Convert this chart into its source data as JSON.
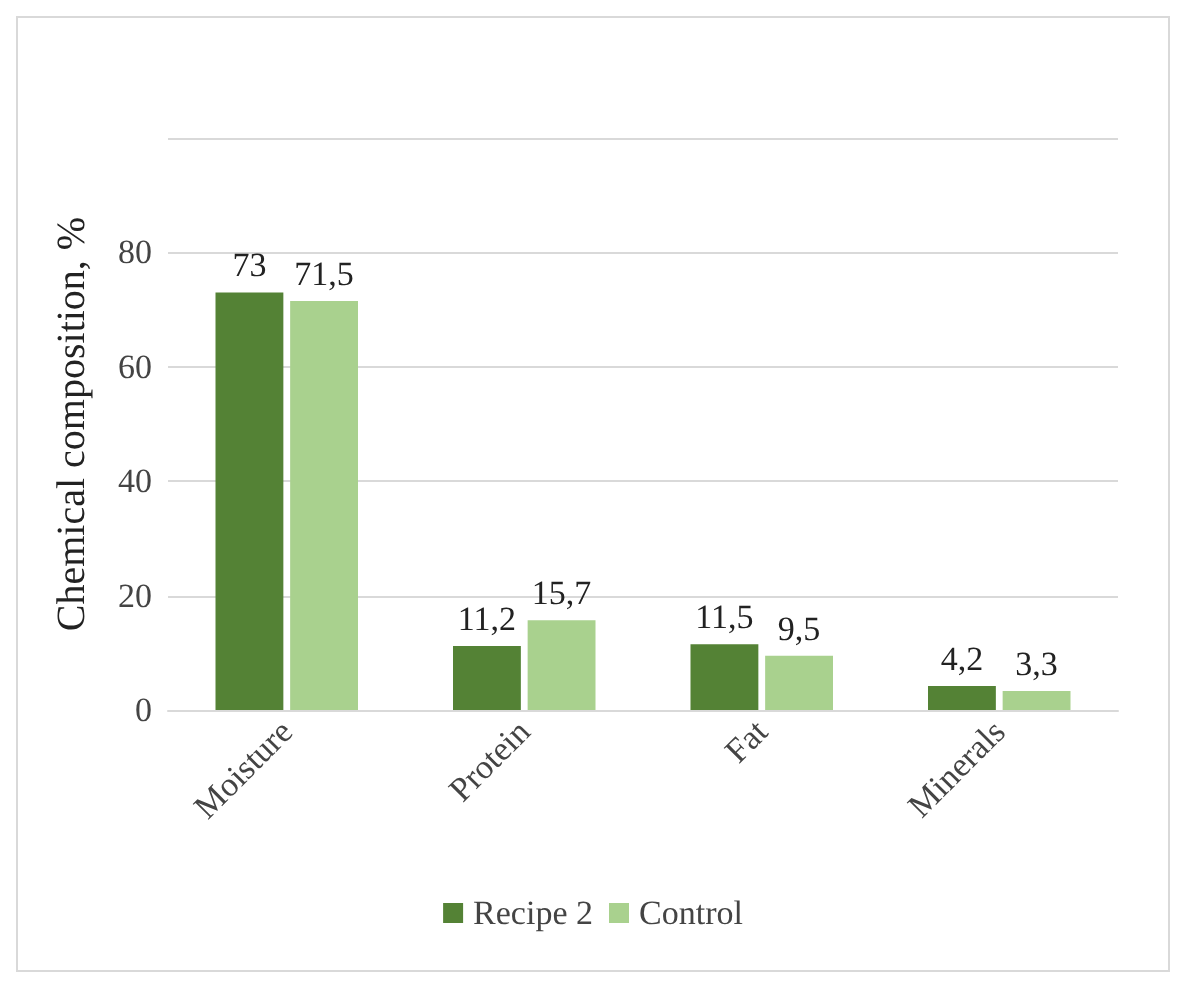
{
  "chart_data": {
    "type": "bar",
    "ylabel": "Chemical composition, %",
    "categories": [
      "Moisture",
      "Protein",
      "Fat",
      "Minerals"
    ],
    "series": [
      {
        "name": "Recipe 2",
        "color": "#548235",
        "values": [
          73,
          11.2,
          11.5,
          4.2
        ],
        "value_labels": [
          "73",
          "11,2",
          "11,5",
          "4,2"
        ]
      },
      {
        "name": "Control",
        "color": "#a9d18e",
        "values": [
          71.5,
          15.7,
          9.5,
          3.3
        ],
        "value_labels": [
          "71,5",
          "15,7",
          "9,5",
          "3,3"
        ]
      }
    ],
    "ylim": [
      0,
      100
    ],
    "yticks": [
      0,
      20,
      40,
      60,
      80,
      {
        "value": 100,
        "label": null
      }
    ],
    "grid": true,
    "legend": "bottom"
  }
}
